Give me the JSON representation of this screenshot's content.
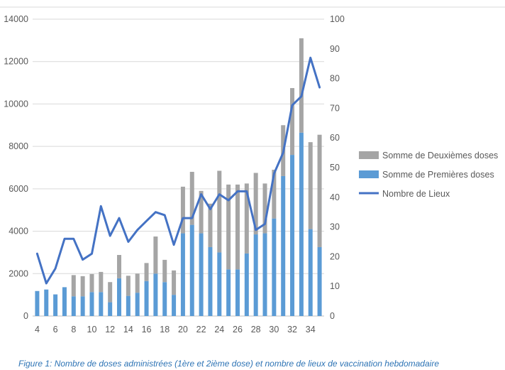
{
  "chart_data": {
    "type": "bar",
    "categories": [
      4,
      5,
      6,
      7,
      8,
      9,
      10,
      11,
      12,
      13,
      14,
      15,
      16,
      17,
      18,
      19,
      20,
      21,
      22,
      23,
      24,
      25,
      26,
      27,
      28,
      29,
      30,
      31,
      32,
      33,
      34,
      35
    ],
    "x_tick_labels": [
      "4",
      "6",
      "8",
      "10",
      "12",
      "14",
      "16",
      "18",
      "20",
      "22",
      "24",
      "26",
      "28",
      "30",
      "32",
      "34"
    ],
    "series": [
      {
        "name": "Somme de Deuxièmes doses",
        "kind": "stacked-bar",
        "axis": "left",
        "values": [
          0,
          0,
          0,
          0,
          1000,
          950,
          850,
          950,
          950,
          1100,
          950,
          900,
          850,
          1750,
          1050,
          1150,
          2200,
          2500,
          2000,
          2050,
          3850,
          4000,
          4000,
          3300,
          2900,
          2350,
          2300,
          2400,
          3150,
          4450,
          4100,
          5300
        ]
      },
      {
        "name": "Somme de Premières doses",
        "kind": "stacked-bar",
        "axis": "left",
        "values": [
          1180,
          1250,
          1020,
          1360,
          930,
          930,
          1130,
          1130,
          650,
          1780,
          950,
          1100,
          1650,
          2000,
          1600,
          1000,
          3900,
          4300,
          3900,
          3250,
          3000,
          2200,
          2200,
          2950,
          3850,
          3900,
          4600,
          6600,
          7600,
          8650,
          4100,
          3250
        ]
      },
      {
        "name": "Nombre de Lieux",
        "kind": "line",
        "axis": "right",
        "values": [
          21,
          11,
          16,
          26,
          26,
          19,
          21,
          37,
          27,
          33,
          25,
          29,
          32,
          35,
          34,
          24,
          33,
          33,
          41,
          36,
          41,
          39,
          42,
          42,
          29,
          31,
          48,
          55,
          71,
          74,
          87,
          77
        ]
      }
    ],
    "y_left": {
      "min": 0,
      "max": 14000,
      "ticks": [
        0,
        2000,
        4000,
        6000,
        8000,
        10000,
        12000,
        14000
      ]
    },
    "y_right": {
      "min": 0,
      "max": 100,
      "ticks": [
        0,
        10,
        20,
        30,
        40,
        50,
        60,
        70,
        80,
        90,
        100
      ]
    },
    "grid": true,
    "legend_position": "right",
    "colors": {
      "second_dose": "#a5a5a5",
      "first_dose": "#5b9bd5",
      "line": "#4472c4",
      "grid": "#d9d9d9",
      "caption": "#2e74b5"
    },
    "caption": "Figure 1: Nombre de doses administrées (1ère et 2ième dose) et nombre de lieux de vaccination hebdomadaire"
  }
}
